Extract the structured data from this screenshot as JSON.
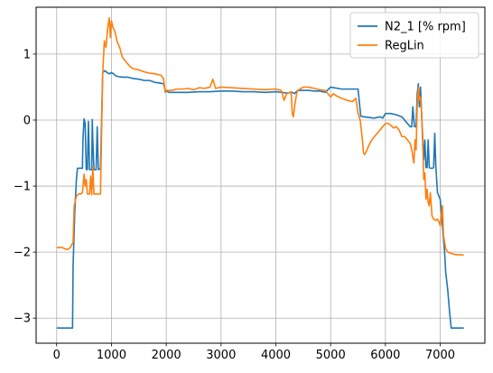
{
  "chart_data": {
    "type": "line",
    "title": "",
    "xlabel": "",
    "ylabel": "",
    "xlim": [
      -375,
      7815
    ],
    "ylim": [
      -3.38,
      1.71
    ],
    "grid": true,
    "legend_position": "top-right",
    "xticks": [
      0,
      1000,
      2000,
      3000,
      4000,
      5000,
      6000,
      7000
    ],
    "yticks": [
      -3,
      -2,
      -1,
      0,
      1
    ],
    "xtick_labels": [
      "0",
      "1000",
      "2000",
      "3000",
      "4000",
      "5000",
      "6000",
      "7000"
    ],
    "ytick_labels": [
      "−3",
      "−2",
      "−1",
      "0",
      "1"
    ],
    "series": [
      {
        "name": "N2_1 [% rpm]",
        "color": "#1f77b4",
        "points": [
          [
            0,
            -3.15
          ],
          [
            290,
            -3.15
          ],
          [
            300,
            -2.2
          ],
          [
            330,
            -1.4
          ],
          [
            360,
            -0.9
          ],
          [
            380,
            -0.73
          ],
          [
            450,
            -0.73
          ],
          [
            470,
            -0.73
          ],
          [
            480,
            -0.3
          ],
          [
            500,
            0.02
          ],
          [
            520,
            -0.05
          ],
          [
            540,
            -0.75
          ],
          [
            560,
            -0.75
          ],
          [
            580,
            -0.02
          ],
          [
            600,
            -0.75
          ],
          [
            640,
            -0.75
          ],
          [
            650,
            0.01
          ],
          [
            660,
            -0.3
          ],
          [
            680,
            -0.75
          ],
          [
            720,
            -0.75
          ],
          [
            740,
            -0.1
          ],
          [
            760,
            -0.75
          ],
          [
            800,
            -0.74
          ],
          [
            840,
            0.72
          ],
          [
            880,
            0.75
          ],
          [
            920,
            0.72
          ],
          [
            960,
            0.7
          ],
          [
            1000,
            0.72
          ],
          [
            1040,
            0.7
          ],
          [
            1080,
            0.67
          ],
          [
            1120,
            0.66
          ],
          [
            1200,
            0.65
          ],
          [
            1300,
            0.65
          ],
          [
            1400,
            0.63
          ],
          [
            1500,
            0.62
          ],
          [
            1600,
            0.6
          ],
          [
            1700,
            0.6
          ],
          [
            1800,
            0.57
          ],
          [
            1900,
            0.56
          ],
          [
            1950,
            0.55
          ],
          [
            1980,
            0.45
          ],
          [
            2050,
            0.42
          ],
          [
            2200,
            0.42
          ],
          [
            2400,
            0.42
          ],
          [
            2600,
            0.43
          ],
          [
            2800,
            0.43
          ],
          [
            3000,
            0.44
          ],
          [
            3200,
            0.44
          ],
          [
            3400,
            0.43
          ],
          [
            3600,
            0.43
          ],
          [
            3800,
            0.42
          ],
          [
            4000,
            0.43
          ],
          [
            4200,
            0.41
          ],
          [
            4300,
            0.42
          ],
          [
            4340,
            0.4
          ],
          [
            4400,
            0.45
          ],
          [
            4500,
            0.45
          ],
          [
            4600,
            0.45
          ],
          [
            4700,
            0.44
          ],
          [
            4800,
            0.44
          ],
          [
            4900,
            0.42
          ],
          [
            5000,
            0.5
          ],
          [
            5200,
            0.47
          ],
          [
            5400,
            0.47
          ],
          [
            5450,
            0.47
          ],
          [
            5500,
            0.47
          ],
          [
            5550,
            0.06
          ],
          [
            5600,
            0.05
          ],
          [
            5700,
            0.04
          ],
          [
            5800,
            0.03
          ],
          [
            5900,
            0.05
          ],
          [
            5950,
            0.03
          ],
          [
            6000,
            0.1
          ],
          [
            6100,
            0.1
          ],
          [
            6200,
            0.08
          ],
          [
            6300,
            0.05
          ],
          [
            6400,
            -0.05
          ],
          [
            6450,
            -0.1
          ],
          [
            6480,
            -0.1
          ],
          [
            6500,
            0.2
          ],
          [
            6530,
            -0.1
          ],
          [
            6560,
            -0.1
          ],
          [
            6580,
            0.4
          ],
          [
            6600,
            0.55
          ],
          [
            6620,
            0.2
          ],
          [
            6640,
            0.5
          ],
          [
            6660,
            0.1
          ],
          [
            6700,
            -0.6
          ],
          [
            6720,
            -0.3
          ],
          [
            6740,
            -0.72
          ],
          [
            6760,
            -0.72
          ],
          [
            6780,
            -0.3
          ],
          [
            6800,
            -0.72
          ],
          [
            6840,
            -0.73
          ],
          [
            6860,
            -0.73
          ],
          [
            6880,
            -0.72
          ],
          [
            6900,
            -0.2
          ],
          [
            6920,
            -0.7
          ],
          [
            6950,
            -1.1
          ],
          [
            7000,
            -1.2
          ],
          [
            7050,
            -1.7
          ],
          [
            7080,
            -2.0
          ],
          [
            7100,
            -2.3
          ],
          [
            7140,
            -2.6
          ],
          [
            7170,
            -2.9
          ],
          [
            7200,
            -3.15
          ],
          [
            7430,
            -3.15
          ]
        ]
      },
      {
        "name": "RegLin",
        "color": "#ff7f0e",
        "points": [
          [
            0,
            -1.93
          ],
          [
            50,
            -1.93
          ],
          [
            100,
            -1.93
          ],
          [
            150,
            -1.95
          ],
          [
            200,
            -1.96
          ],
          [
            250,
            -1.93
          ],
          [
            300,
            -1.85
          ],
          [
            320,
            -1.3
          ],
          [
            360,
            -1.15
          ],
          [
            400,
            -1.12
          ],
          [
            440,
            -1.12
          ],
          [
            470,
            -1.1
          ],
          [
            500,
            -0.82
          ],
          [
            520,
            -1.0
          ],
          [
            540,
            -0.9
          ],
          [
            560,
            -1.12
          ],
          [
            600,
            -1.12
          ],
          [
            620,
            -0.85
          ],
          [
            640,
            -1.13
          ],
          [
            660,
            -0.7
          ],
          [
            680,
            -1.12
          ],
          [
            720,
            -1.12
          ],
          [
            760,
            -1.12
          ],
          [
            800,
            -1.12
          ],
          [
            840,
            0.7
          ],
          [
            870,
            1.2
          ],
          [
            900,
            1.1
          ],
          [
            920,
            1.3
          ],
          [
            940,
            1.45
          ],
          [
            960,
            1.55
          ],
          [
            980,
            1.25
          ],
          [
            1000,
            1.5
          ],
          [
            1030,
            1.4
          ],
          [
            1060,
            1.35
          ],
          [
            1100,
            1.2
          ],
          [
            1150,
            1.1
          ],
          [
            1200,
            0.95
          ],
          [
            1250,
            0.9
          ],
          [
            1300,
            0.85
          ],
          [
            1350,
            0.8
          ],
          [
            1400,
            0.78
          ],
          [
            1500,
            0.76
          ],
          [
            1600,
            0.73
          ],
          [
            1700,
            0.71
          ],
          [
            1800,
            0.7
          ],
          [
            1900,
            0.68
          ],
          [
            1950,
            0.63
          ],
          [
            1980,
            0.42
          ],
          [
            2000,
            0.45
          ],
          [
            2100,
            0.45
          ],
          [
            2200,
            0.47
          ],
          [
            2300,
            0.47
          ],
          [
            2400,
            0.48
          ],
          [
            2500,
            0.46
          ],
          [
            2600,
            0.49
          ],
          [
            2700,
            0.48
          ],
          [
            2800,
            0.5
          ],
          [
            2850,
            0.62
          ],
          [
            2900,
            0.48
          ],
          [
            3000,
            0.5
          ],
          [
            3200,
            0.49
          ],
          [
            3400,
            0.48
          ],
          [
            3600,
            0.47
          ],
          [
            3800,
            0.46
          ],
          [
            4000,
            0.47
          ],
          [
            4100,
            0.45
          ],
          [
            4150,
            0.3
          ],
          [
            4200,
            0.4
          ],
          [
            4280,
            0.43
          ],
          [
            4300,
            0.1
          ],
          [
            4320,
            0.05
          ],
          [
            4350,
            0.25
          ],
          [
            4380,
            0.4
          ],
          [
            4400,
            0.45
          ],
          [
            4500,
            0.5
          ],
          [
            4600,
            0.5
          ],
          [
            4700,
            0.48
          ],
          [
            4800,
            0.46
          ],
          [
            4900,
            0.45
          ],
          [
            5000,
            0.35
          ],
          [
            5050,
            0.4
          ],
          [
            5100,
            0.37
          ],
          [
            5200,
            0.33
          ],
          [
            5300,
            0.3
          ],
          [
            5400,
            0.28
          ],
          [
            5460,
            0.33
          ],
          [
            5500,
            0.1
          ],
          [
            5540,
            0.0
          ],
          [
            5580,
            -0.3
          ],
          [
            5600,
            -0.5
          ],
          [
            5620,
            -0.52
          ],
          [
            5650,
            -0.48
          ],
          [
            5700,
            -0.38
          ],
          [
            5750,
            -0.3
          ],
          [
            5800,
            -0.25
          ],
          [
            5850,
            -0.2
          ],
          [
            5900,
            -0.15
          ],
          [
            5950,
            -0.1
          ],
          [
            6000,
            -0.05
          ],
          [
            6050,
            -0.05
          ],
          [
            6100,
            -0.08
          ],
          [
            6150,
            -0.12
          ],
          [
            6200,
            -0.1
          ],
          [
            6250,
            -0.15
          ],
          [
            6300,
            -0.25
          ],
          [
            6350,
            -0.25
          ],
          [
            6400,
            -0.3
          ],
          [
            6450,
            -0.35
          ],
          [
            6480,
            -0.45
          ],
          [
            6500,
            -0.55
          ],
          [
            6520,
            -0.65
          ],
          [
            6540,
            -0.3
          ],
          [
            6560,
            -0.45
          ],
          [
            6580,
            0.2
          ],
          [
            6600,
            0.5
          ],
          [
            6620,
            0.3
          ],
          [
            6640,
            0.35
          ],
          [
            6660,
            0.1
          ],
          [
            6680,
            -0.35
          ],
          [
            6700,
            -0.9
          ],
          [
            6720,
            -0.8
          ],
          [
            6740,
            -1.2
          ],
          [
            6760,
            -1.05
          ],
          [
            6780,
            -1.25
          ],
          [
            6800,
            -1.3
          ],
          [
            6820,
            -1.1
          ],
          [
            6850,
            -1.45
          ],
          [
            6880,
            -1.5
          ],
          [
            6920,
            -1.52
          ],
          [
            6950,
            -1.5
          ],
          [
            6980,
            -1.55
          ],
          [
            7000,
            -1.6
          ],
          [
            7040,
            -1.3
          ],
          [
            7060,
            -1.75
          ],
          [
            7100,
            -1.95
          ],
          [
            7140,
            -2.0
          ],
          [
            7200,
            -2.02
          ],
          [
            7300,
            -2.04
          ],
          [
            7400,
            -2.04
          ],
          [
            7430,
            -2.05
          ]
        ]
      }
    ]
  }
}
